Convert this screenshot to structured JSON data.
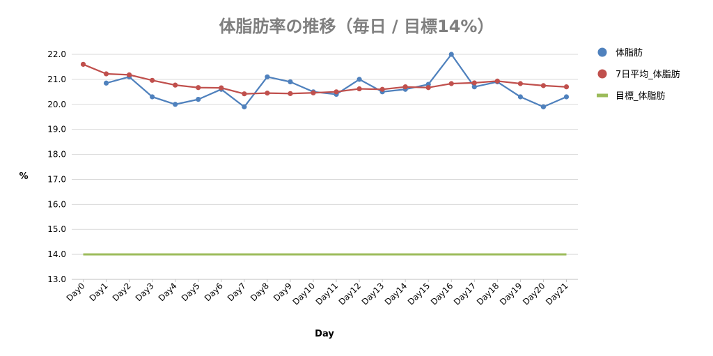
{
  "chart_data": {
    "type": "line",
    "title": "体脂肪率の推移（毎日 / 目標14%）",
    "xlabel": "Day",
    "ylabel": "%",
    "ylim": [
      13.0,
      22.0
    ],
    "yticks": [
      "13.0",
      "14.0",
      "15.0",
      "16.0",
      "17.0",
      "18.0",
      "19.0",
      "20.0",
      "21.0",
      "22.0"
    ],
    "grid": true,
    "legend_position": "right",
    "categories": [
      "Day0",
      "Day1",
      "Day2",
      "Day3",
      "Day4",
      "Day5",
      "Day6",
      "Day7",
      "Day8",
      "Day9",
      "Day10",
      "Day11",
      "Day12",
      "Day13",
      "Day14",
      "Day15",
      "Day16",
      "Day17",
      "Day18",
      "Day19",
      "Day20",
      "Day21"
    ],
    "series": [
      {
        "name": "体脂肪",
        "color": "#4f81bd",
        "marker": "circle",
        "values": [
          null,
          20.85,
          21.1,
          20.3,
          20.0,
          20.2,
          20.6,
          19.9,
          21.1,
          20.9,
          20.5,
          20.4,
          21.0,
          20.5,
          20.6,
          20.8,
          22.0,
          20.7,
          20.9,
          20.3,
          19.9,
          20.3
        ]
      },
      {
        "name": "7日平均_体脂肪",
        "color": "#c0504d",
        "marker": "circle",
        "values": [
          21.6,
          21.22,
          21.18,
          20.96,
          20.77,
          20.67,
          20.66,
          20.42,
          20.45,
          20.43,
          20.46,
          20.5,
          20.62,
          20.6,
          20.7,
          20.67,
          20.83,
          20.86,
          20.93,
          20.83,
          20.75,
          20.7
        ]
      },
      {
        "name": "目標_体脂肪",
        "color": "#9bbb59",
        "marker": "none",
        "values": [
          14.0,
          14.0,
          14.0,
          14.0,
          14.0,
          14.0,
          14.0,
          14.0,
          14.0,
          14.0,
          14.0,
          14.0,
          14.0,
          14.0,
          14.0,
          14.0,
          14.0,
          14.0,
          14.0,
          14.0,
          14.0,
          14.0
        ]
      }
    ]
  }
}
